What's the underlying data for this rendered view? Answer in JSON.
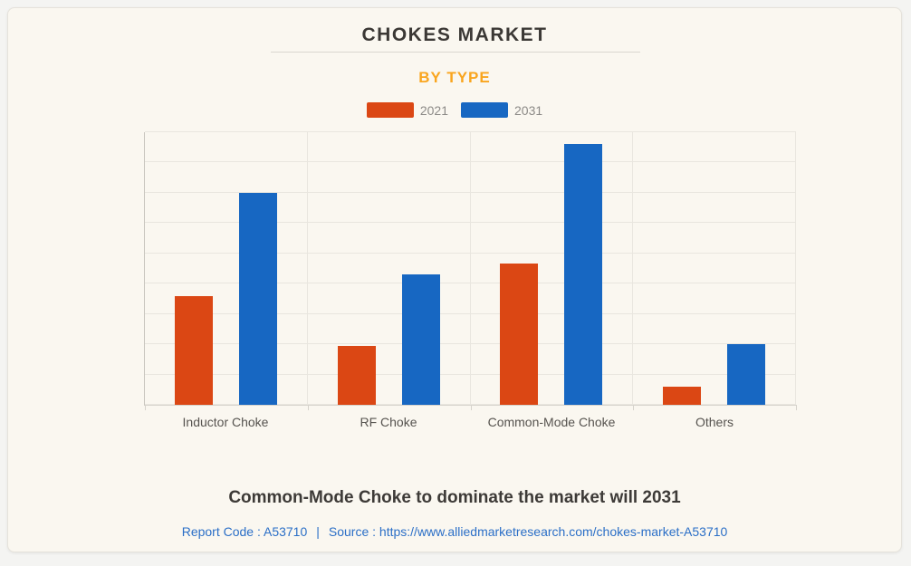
{
  "page": {
    "title": "CHOKES MARKET",
    "subtitle": "BY TYPE",
    "headline": "Common-Mode Choke to dominate the market will 2031",
    "report_code": "Report Code : A53710",
    "separator": "|",
    "source": "Source : https://www.alliedmarketresearch.com/chokes-market-A53710"
  },
  "colors": {
    "accent_orange": "#F9A51E",
    "series_2021": "#DB4714",
    "series_2031": "#1767C2",
    "title_text": "#3B3835",
    "legend_text": "#8C8A87",
    "axis_label_text": "#56534F",
    "link_blue": "#2B6FC7",
    "card_bg": "#FAF7F0",
    "page_bg": "#F4F4F2",
    "grid_line": "#E9E6DF"
  },
  "chart_data": {
    "type": "bar",
    "title": "CHOKES MARKET",
    "subtitle": "BY TYPE",
    "categories": [
      "Inductor Choke",
      "RF Choke",
      "Common-Mode Choke",
      "Others"
    ],
    "series": [
      {
        "name": "2021",
        "color": "#DB4714",
        "values": [
          3.6,
          1.95,
          4.65,
          0.6
        ]
      },
      {
        "name": "2031",
        "color": "#1767C2",
        "values": [
          7.0,
          4.3,
          8.6,
          2.0
        ]
      }
    ],
    "xlabel": "",
    "ylabel": "",
    "ylim": [
      0,
      9
    ],
    "y_gridline_step": 1,
    "grid": true,
    "legend_position": "top",
    "y_axis_labels_visible": false,
    "value_units": "gridline units (no y-axis tick labels shown in chart)"
  }
}
